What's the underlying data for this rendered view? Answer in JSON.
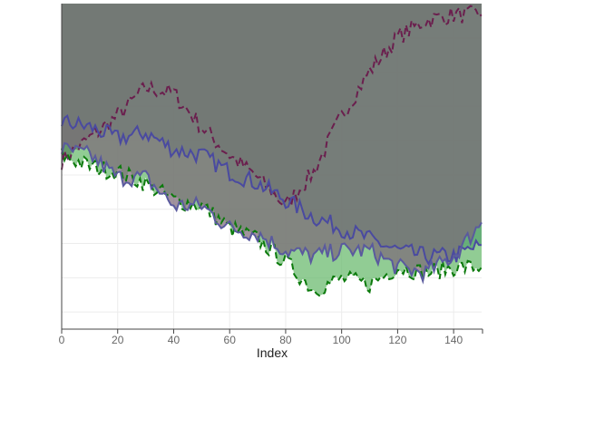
{
  "chart_data": {
    "type": "area",
    "xlabel": "Index",
    "ylabel": "",
    "title": "",
    "xlim": [
      0,
      150
    ],
    "ylim": [
      -29,
      29
    ],
    "x_ticks": [
      0,
      20,
      40,
      60,
      80,
      100,
      120,
      140
    ],
    "x_tick_labels": [
      "0",
      "20",
      "40",
      "60",
      "80",
      "100",
      "120",
      "140"
    ],
    "grid": true,
    "legend": "none",
    "series": [
      {
        "color": "#5e3a66",
        "line_color": "#6b1f4e",
        "line_style": "dashed",
        "x": [
          0,
          10,
          20,
          30,
          40,
          50,
          60,
          70,
          80,
          90,
          100,
          110,
          120,
          130,
          140,
          150
        ],
        "values": [
          1,
          5,
          9,
          14,
          13,
          7,
          2,
          -2,
          -7,
          -1,
          9,
          17,
          23,
          26,
          27,
          27
        ]
      },
      {
        "color": "#2f6e7a",
        "line_color": "#4a4aa0",
        "line_style": "solid",
        "x": [
          0,
          10,
          20,
          30,
          40,
          50,
          60,
          70,
          80,
          90,
          100,
          110,
          120,
          130,
          140,
          150
        ],
        "values": [
          8,
          7,
          5,
          6,
          3,
          2,
          -1,
          -3,
          -6,
          -9,
          -11,
          -13,
          -15,
          -16,
          -16,
          -14
        ]
      },
      {
        "color": "#67b96b",
        "line_color": "#0c7a0c",
        "line_style": "dashed",
        "x": [
          0,
          10,
          20,
          30,
          40,
          50,
          60,
          70,
          80,
          90,
          100,
          110,
          120,
          130,
          140,
          150
        ],
        "values": [
          2,
          0,
          -1,
          -3,
          -6,
          -7,
          -11,
          -13,
          -17,
          -22,
          -20,
          -21,
          -18,
          -19,
          -18,
          -18
        ]
      },
      {
        "color": "#7d6a78",
        "line_color": "#5a5a9e",
        "line_style": "solid",
        "x": [
          0,
          10,
          20,
          30,
          40,
          50,
          60,
          70,
          80,
          90,
          100,
          110,
          120,
          130,
          140,
          150
        ],
        "values": [
          3,
          2,
          -2,
          -2,
          -7,
          -7,
          -11,
          -12,
          -15,
          -16,
          -15,
          -15,
          -18,
          -19,
          -16,
          -10
        ]
      }
    ]
  }
}
